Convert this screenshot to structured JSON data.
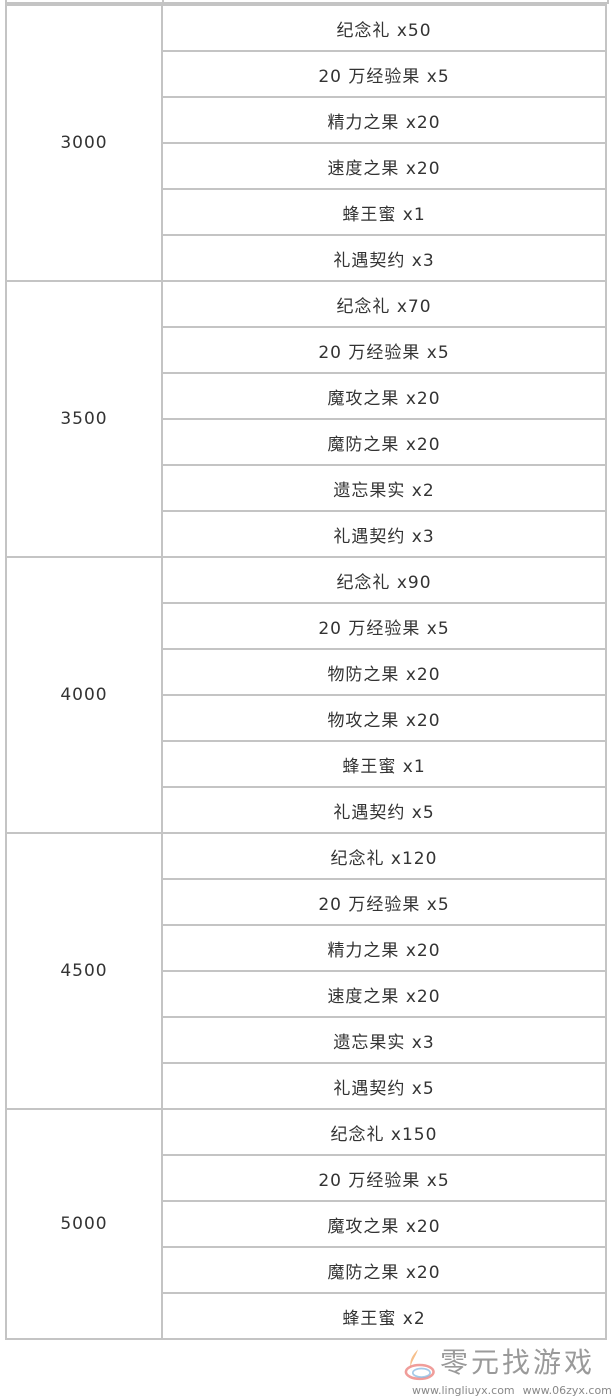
{
  "tiers": [
    {
      "amount": "3000",
      "rewards": [
        "纪念礼 x50",
        "20 万经验果 x5",
        "精力之果 x20",
        "速度之果 x20",
        "蜂王蜜 x1",
        "礼遇契约 x3"
      ]
    },
    {
      "amount": "3500",
      "rewards": [
        "纪念礼 x70",
        "20 万经验果 x5",
        "魔攻之果 x20",
        "魔防之果 x20",
        "遗忘果实 x2",
        "礼遇契约 x3"
      ]
    },
    {
      "amount": "4000",
      "rewards": [
        "纪念礼 x90",
        "20 万经验果 x5",
        "物防之果 x20",
        "物攻之果 x20",
        "蜂王蜜 x1",
        "礼遇契约 x5"
      ]
    },
    {
      "amount": "4500",
      "rewards": [
        "纪念礼 x120",
        "20 万经验果 x5",
        "精力之果 x20",
        "速度之果 x20",
        "遗忘果实 x3",
        "礼遇契约 x5"
      ]
    },
    {
      "amount": "5000",
      "rewards": [
        "纪念礼 x150",
        "20 万经验果 x5",
        "魔攻之果 x20",
        "魔防之果 x20",
        "蜂王蜜 x2"
      ]
    }
  ],
  "watermark": {
    "title": "零元找游戏",
    "url1": "www.lingliuyx.com",
    "url2": "www.06zyx.com"
  }
}
